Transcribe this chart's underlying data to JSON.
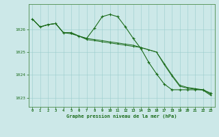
{
  "title": "Graphe pression niveau de la mer (hPa)",
  "bg_color": "#cce8e8",
  "grid_color": "#99cccc",
  "line_color": "#1a6b1a",
  "marker_color": "#1a6b1a",
  "xlim": [
    -0.5,
    23.5
  ],
  "ylim": [
    1022.6,
    1027.1
  ],
  "yticks": [
    1023,
    1024,
    1025,
    1026
  ],
  "xticks": [
    0,
    1,
    2,
    3,
    4,
    5,
    6,
    7,
    8,
    9,
    10,
    11,
    12,
    13,
    14,
    15,
    16,
    17,
    18,
    19,
    20,
    21,
    22,
    23
  ],
  "series1": [
    1026.45,
    1026.1,
    1026.2,
    1026.25,
    1025.85,
    1025.85,
    1025.7,
    1025.6,
    1026.05,
    1026.55,
    1026.65,
    1026.55,
    1026.1,
    1025.6,
    1025.15,
    1024.55,
    1024.05,
    1023.6,
    1023.35,
    1023.35,
    1023.35,
    1023.35,
    1023.35,
    1023.2
  ],
  "series2": [
    1026.45,
    1026.1,
    1026.2,
    1026.25,
    1025.85,
    1025.85,
    1025.7,
    1025.6,
    1025.55,
    1025.5,
    1025.45,
    1025.4,
    1025.35,
    1025.3,
    1025.2,
    1025.1,
    1025.0,
    1024.5,
    1024.0,
    1023.55,
    1023.45,
    1023.4,
    1023.35,
    1023.15
  ],
  "series3": [
    1026.45,
    1026.1,
    1026.2,
    1026.25,
    1025.85,
    1025.8,
    1025.7,
    1025.55,
    1025.5,
    1025.45,
    1025.4,
    1025.35,
    1025.3,
    1025.25,
    1025.2,
    1025.1,
    1025.0,
    1024.45,
    1023.95,
    1023.5,
    1023.42,
    1023.38,
    1023.33,
    1023.1
  ]
}
